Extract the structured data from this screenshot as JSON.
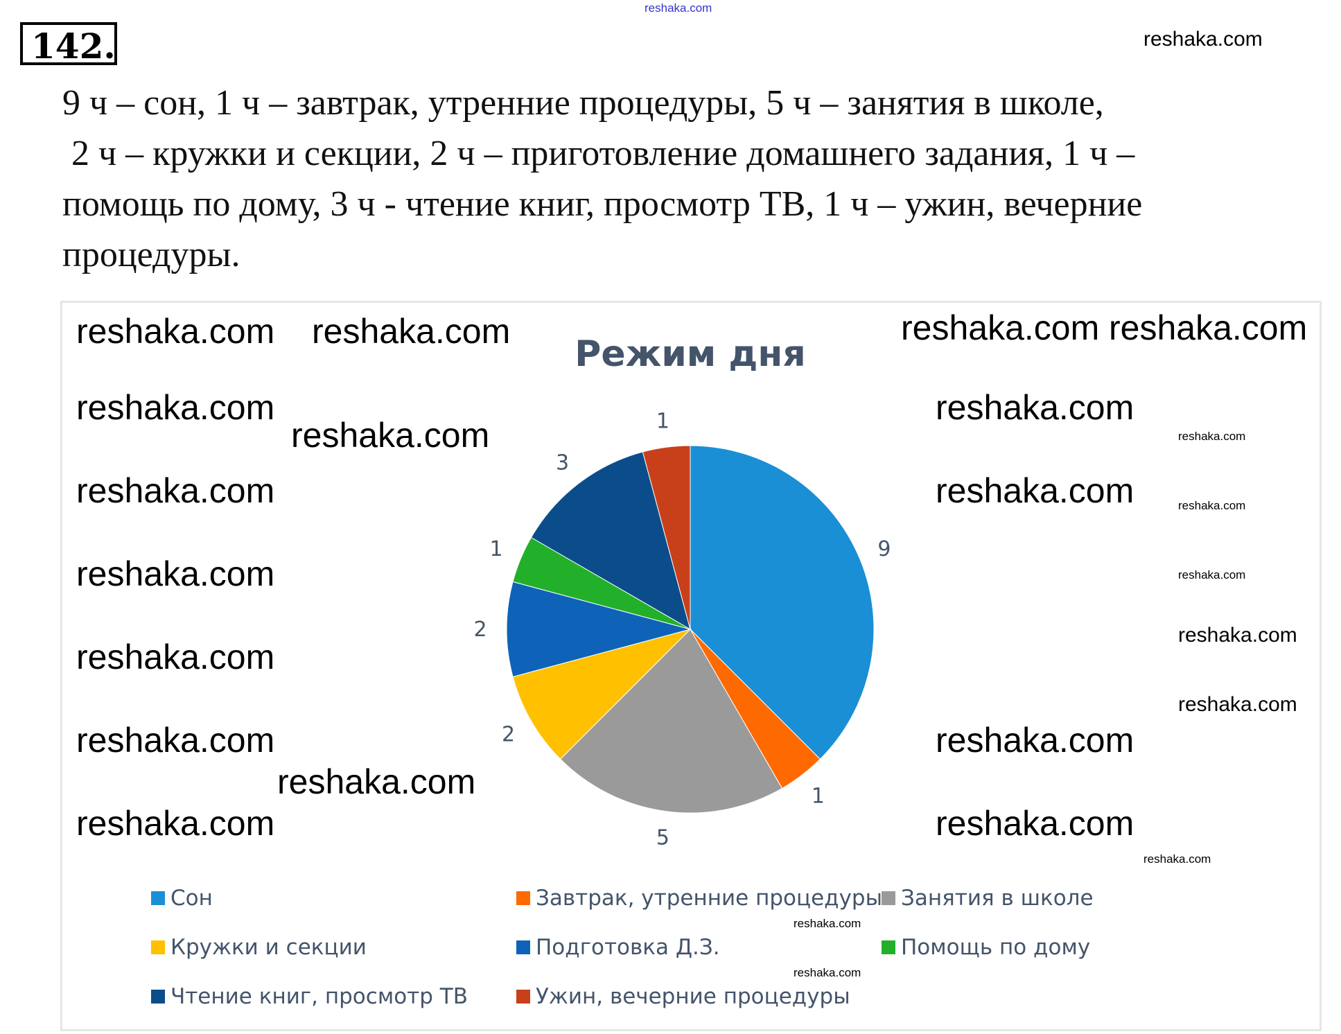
{
  "problem_number": "142.",
  "task_text": [
    "9 ч – сон, 1 ч – завтрак, утренние процедуры, 5 ч – занятия в школе,",
    " 2 ч – кружки и секции, 2 ч – приготовление домашнего задания, 1 ч –",
    "помощь по дому, 3 ч - чтение книг, просмотр ТВ, 1 ч – ужин, вечерние",
    "процедуры."
  ],
  "watermark": "reshaka.com",
  "chart_data": {
    "type": "pie",
    "title": "Режим дня",
    "categories": [
      "Сон",
      "Завтрак, утренние процедуры",
      "Занятия в школе",
      "Кружки и секции",
      "Подготовка Д.З.",
      "Помощь по дому",
      "Чтение книг, просмотр ТВ",
      "Ужин, вечерние процедуры"
    ],
    "values": [
      9,
      1,
      5,
      2,
      2,
      1,
      3,
      1
    ],
    "data_labels": [
      "9",
      "1",
      "5",
      "2",
      "2",
      "1",
      "3",
      "1"
    ],
    "colors": [
      "#1a8fd6",
      "#ff6a00",
      "#9a9a9a",
      "#ffc000",
      "#0e63b8",
      "#22b02a",
      "#0b4d8a",
      "#c8401a"
    ],
    "start_angle_deg": 0,
    "direction": "clockwise",
    "legend_placement": "bottom"
  }
}
